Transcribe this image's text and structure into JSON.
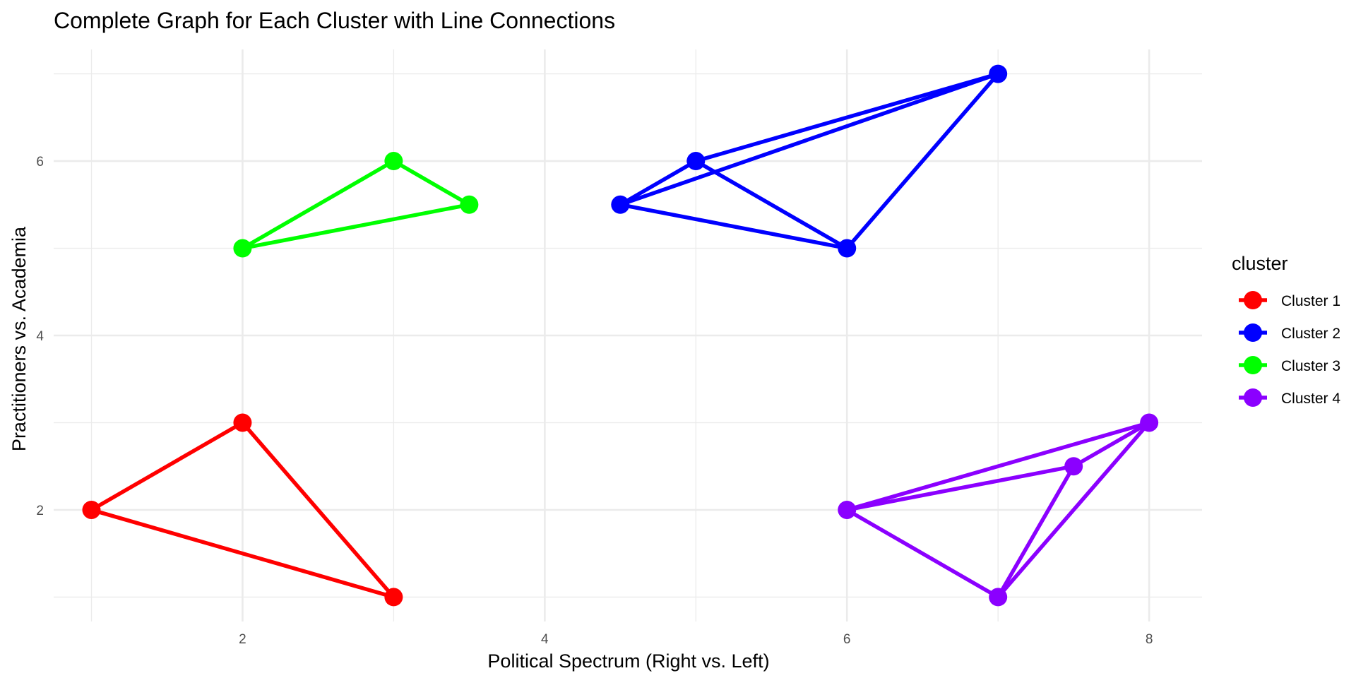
{
  "chart_data": {
    "type": "scatter",
    "title": "Complete Graph for Each Cluster with Line Connections",
    "xlabel": "Political Spectrum (Right vs. Left)",
    "ylabel": "Practitioners vs. Academia",
    "xlim": [
      0.75,
      8.35
    ],
    "ylim": [
      0.72,
      7.28
    ],
    "x_ticks": [
      2,
      4,
      6,
      8
    ],
    "y_ticks": [
      2,
      4,
      6
    ],
    "x_minor": [
      1,
      3,
      5,
      7
    ],
    "y_minor": [
      1,
      3,
      5,
      7
    ],
    "grid": true,
    "edges": "complete graph within each cluster",
    "legend": {
      "title": "cluster",
      "position": "right"
    },
    "series": [
      {
        "name": "Cluster 1",
        "color": "#ff0000",
        "points": [
          [
            1,
            2
          ],
          [
            2,
            3
          ],
          [
            3,
            1
          ]
        ]
      },
      {
        "name": "Cluster 2",
        "color": "#0000ff",
        "points": [
          [
            4.5,
            5.5
          ],
          [
            5,
            6
          ],
          [
            6,
            5
          ],
          [
            7,
            7
          ]
        ]
      },
      {
        "name": "Cluster 3",
        "color": "#00ff00",
        "points": [
          [
            2,
            5
          ],
          [
            3,
            6
          ],
          [
            3.5,
            5.5
          ]
        ]
      },
      {
        "name": "Cluster 4",
        "color": "#8b00ff",
        "points": [
          [
            6,
            2
          ],
          [
            7,
            1
          ],
          [
            7.5,
            2.5
          ],
          [
            8,
            3
          ]
        ]
      }
    ]
  }
}
